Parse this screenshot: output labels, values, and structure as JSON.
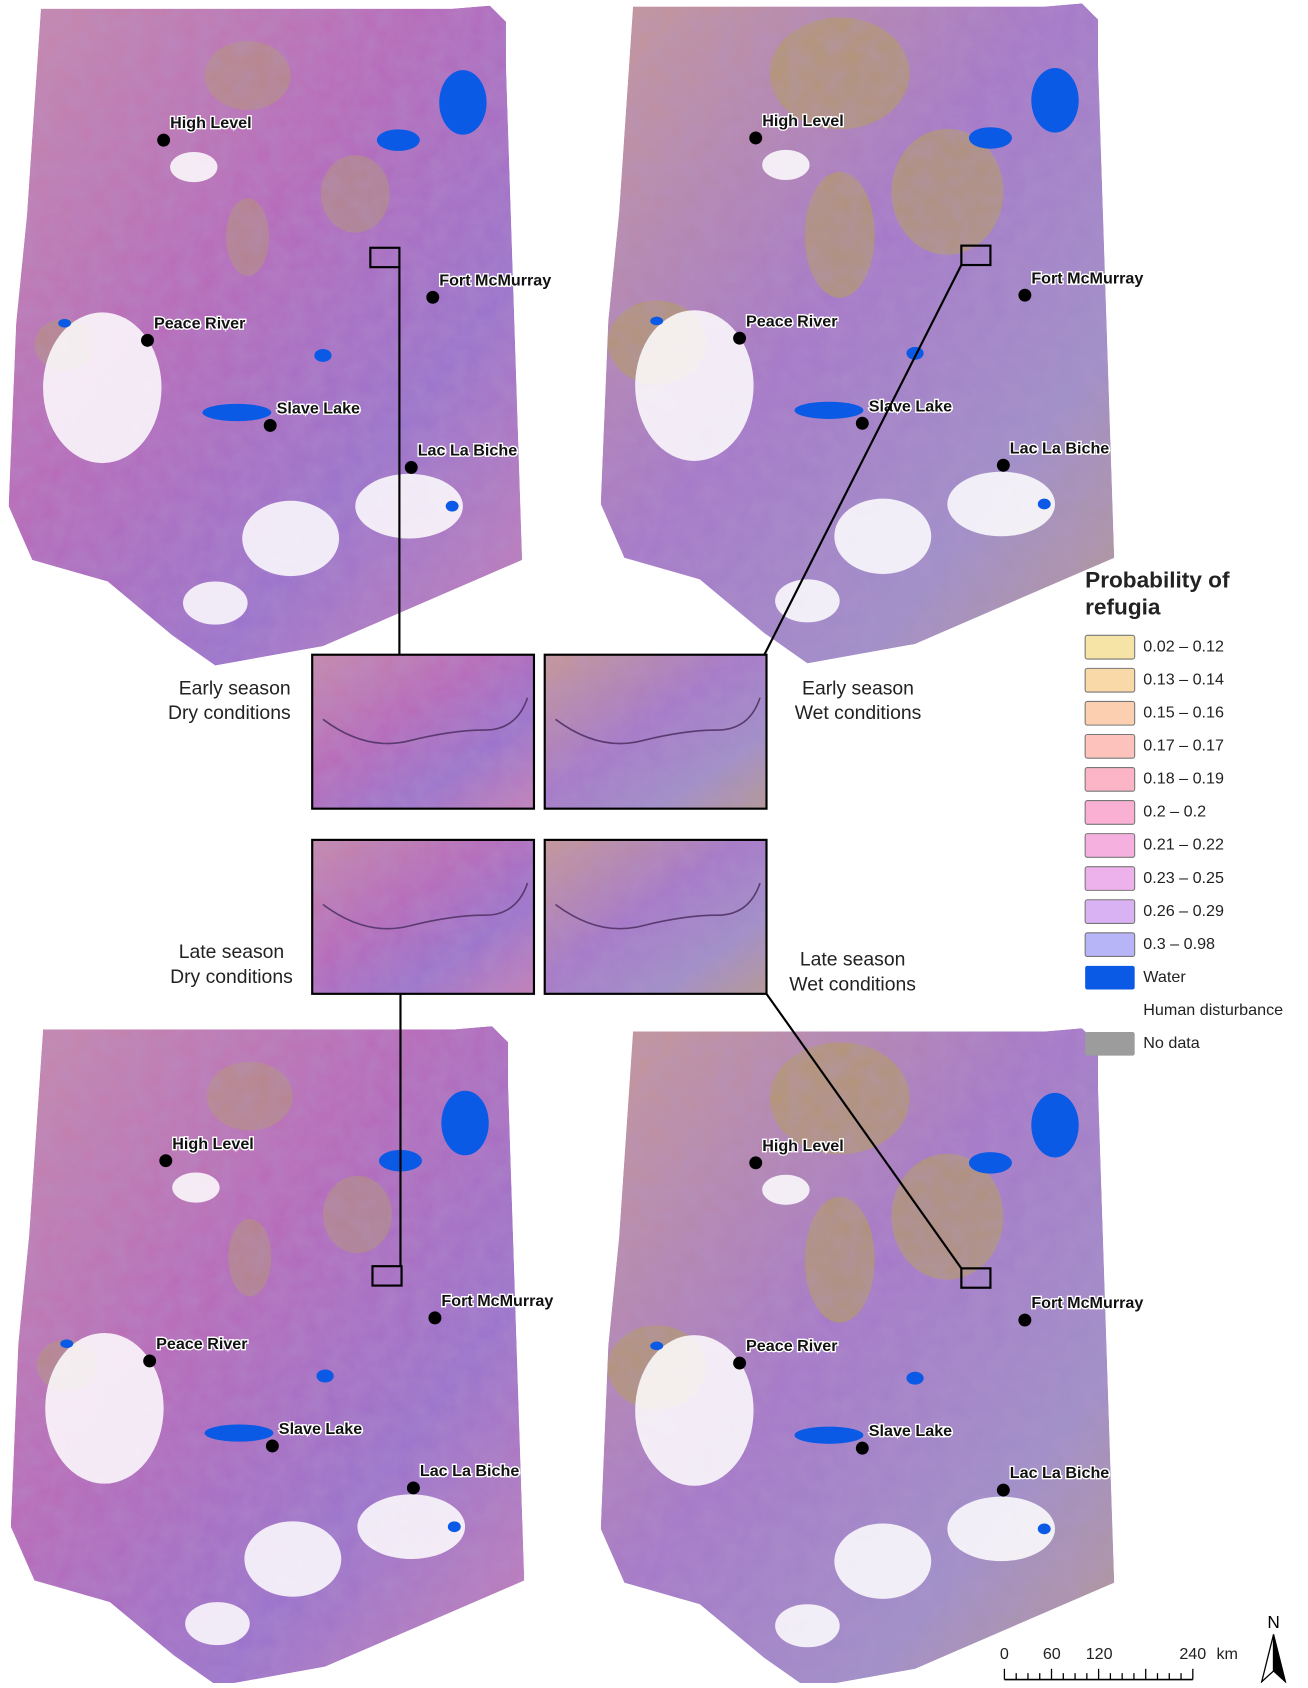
{
  "maps": [
    {
      "cities": [
        "High Level",
        "Fort McMurray",
        "Peace River",
        "Slave Lake",
        "Lac La Biche"
      ]
    },
    {
      "cities": [
        "High Level",
        "Fort McMurray",
        "Peace River",
        "Slave Lake",
        "Lac La Biche"
      ]
    },
    {
      "cities": [
        "High Level",
        "Fort McMurray",
        "Peace River",
        "Slave Lake",
        "Lac La Biche"
      ]
    },
    {
      "cities": [
        "High Level",
        "Fort McMurray",
        "Peace River",
        "Slave Lake",
        "Lac La Biche"
      ]
    }
  ],
  "insets": [
    {
      "lines": [
        "Early season",
        "Dry conditions"
      ]
    },
    {
      "lines": [
        "Early season",
        "Wet conditions"
      ]
    },
    {
      "lines": [
        "Late season",
        "Dry conditions"
      ]
    },
    {
      "lines": [
        "Late season",
        "Wet conditions"
      ]
    }
  ],
  "legend": {
    "title_lines": [
      "Probability of",
      "refugia"
    ],
    "items": [
      {
        "label": "0.02 – 0.12",
        "color": "#f6e3a6"
      },
      {
        "label": "0.13 – 0.14",
        "color": "#f9d9a8"
      },
      {
        "label": "0.15 – 0.16",
        "color": "#fbcfb0"
      },
      {
        "label": "0.17 – 0.17",
        "color": "#fcc2bb"
      },
      {
        "label": "0.18 – 0.19",
        "color": "#fbb5c6"
      },
      {
        "label": "0.2 – 0.2",
        "color": "#f9b0d3"
      },
      {
        "label": "0.21 – 0.22",
        "color": "#f6b0e0"
      },
      {
        "label": "0.23 – 0.25",
        "color": "#edb1ec"
      },
      {
        "label": "0.26 – 0.29",
        "color": "#d9b2f3"
      },
      {
        "label": "0.3 – 0.98",
        "color": "#b7b4f7"
      },
      {
        "label": "Water",
        "color": "#0a5ae6"
      },
      {
        "label": "Human disturbance",
        "color": "#ffffff"
      },
      {
        "label": "No data",
        "color": "#9c9c9c"
      }
    ]
  },
  "scale_bar": {
    "labels": [
      "0",
      "60",
      "120",
      "240"
    ],
    "unit": "km"
  },
  "north": "N"
}
